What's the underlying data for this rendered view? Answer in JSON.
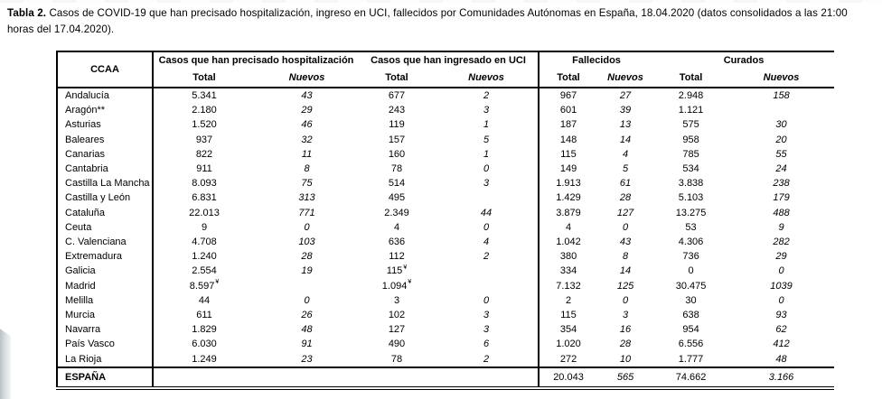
{
  "caption": {
    "label": "Tabla 2.",
    "line1": " Casos de COVID-19 que han precisado hospitalización, ingreso en UCI, fallecidos  por Comunidades Autónomas en España, 18.04.2020 (datos consolidados a las 21:00",
    "line2": "horas del 17.04.2020)."
  },
  "table": {
    "footnote_marker": "¥",
    "col_group_headers": [
      {
        "label": "CCAA"
      },
      {
        "label": "Casos que han precisado hospitalización"
      },
      {
        "label": "Casos que han ingresado en UCI"
      },
      {
        "label": "Fallecidos"
      },
      {
        "label": "Curados"
      }
    ],
    "sub_headers": [
      "Total",
      "Nuevos",
      "Total",
      "Nuevos",
      "Total",
      "Nuevos",
      "Total",
      "Nuevos"
    ],
    "rows": [
      {
        "ccaa": "Andalucía",
        "cells": [
          "5.341",
          "43",
          "677",
          "2",
          "967",
          "27",
          "2.948",
          "158"
        ]
      },
      {
        "ccaa": "Aragón**",
        "cells": [
          "2.180",
          "29",
          "243",
          "3",
          "601",
          "39",
          "1.121",
          ""
        ]
      },
      {
        "ccaa": "Asturias",
        "cells": [
          "1.520",
          "46",
          "119",
          "1",
          "187",
          "13",
          "575",
          "30"
        ]
      },
      {
        "ccaa": "Baleares",
        "cells": [
          "937",
          "32",
          "157",
          "5",
          "148",
          "14",
          "958",
          "20"
        ]
      },
      {
        "ccaa": "Canarias",
        "cells": [
          "822",
          "11",
          "160",
          "1",
          "115",
          "4",
          "785",
          "55"
        ]
      },
      {
        "ccaa": "Cantabria",
        "cells": [
          "911",
          "8",
          "78",
          "0",
          "149",
          "5",
          "534",
          "24"
        ]
      },
      {
        "ccaa": "Castilla La Mancha",
        "cells": [
          "8.093",
          "75",
          "514",
          "3",
          "1.913",
          "61",
          "3.838",
          "238"
        ]
      },
      {
        "ccaa": "Castilla y León",
        "cells": [
          "6.831",
          "313",
          "495",
          "",
          "1.429",
          "28",
          "5.103",
          "179"
        ]
      },
      {
        "ccaa": "Cataluña",
        "cells": [
          "22.013",
          "771",
          "2.349",
          "44",
          "3.879",
          "127",
          "13.275",
          "488"
        ]
      },
      {
        "ccaa": "Ceuta",
        "cells": [
          "9",
          "0",
          "4",
          "0",
          "4",
          "0",
          "53",
          "9"
        ]
      },
      {
        "ccaa": "C. Valenciana",
        "cells": [
          "4.708",
          "103",
          "636",
          "4",
          "1.042",
          "43",
          "4.306",
          "282"
        ]
      },
      {
        "ccaa": "Extremadura",
        "cells": [
          "1.240",
          "28",
          "112",
          "2",
          "380",
          "8",
          "736",
          "29"
        ]
      },
      {
        "ccaa": "Galicia",
        "cells": [
          "2.554",
          "19",
          "115¥",
          "",
          "334",
          "14",
          "0",
          "0"
        ]
      },
      {
        "ccaa": "Madrid",
        "cells": [
          "8.597¥",
          "",
          "1.094¥",
          "",
          "7.132",
          "125",
          "30.475",
          "1039"
        ]
      },
      {
        "ccaa": "Melilla",
        "cells": [
          "44",
          "0",
          "3",
          "0",
          "2",
          "0",
          "30",
          "0"
        ]
      },
      {
        "ccaa": "Murcia",
        "cells": [
          "611",
          "26",
          "102",
          "3",
          "115",
          "3",
          "638",
          "93"
        ]
      },
      {
        "ccaa": "Navarra",
        "cells": [
          "1.829",
          "48",
          "127",
          "3",
          "354",
          "16",
          "954",
          "62"
        ]
      },
      {
        "ccaa": "País Vasco",
        "cells": [
          "6.030",
          "91",
          "490",
          "6",
          "1.020",
          "28",
          "6.556",
          "412"
        ]
      },
      {
        "ccaa": "La Rioja",
        "cells": [
          "1.249",
          "23",
          "78",
          "2",
          "272",
          "10",
          "1.777",
          "48"
        ]
      },
      {
        "ccaa": "ESPAÑA",
        "total_row": true,
        "cells": [
          "",
          "",
          "",
          "",
          "20.043",
          "565",
          "74.662",
          "3.166"
        ]
      }
    ]
  }
}
